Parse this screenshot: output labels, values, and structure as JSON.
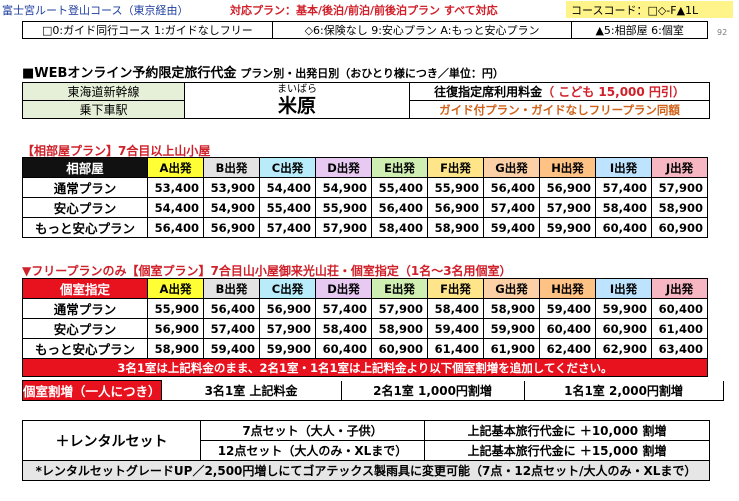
{
  "header": {
    "title": "富士宮ルート登山コース（東京経由）",
    "plans": "対応プラン：基本/後泊/前泊/前後泊プラン すべて対応",
    "course_code": "コースコード：□◇-F▲1L",
    "page_num": "92"
  },
  "legend": {
    "guide": "□0:ガイド同行コース 1:ガイドなしフリー",
    "insurance": "◇6:保険なし 9:安心プラン A:もっと安心プラン",
    "room": "▲5:相部屋 6:個室"
  },
  "section": {
    "title": "■WEBオンライン予約限定旅行代金",
    "subtitle": " プラン別・出発日別（おひとり様につき／単位：円）"
  },
  "station": {
    "line": "東海道新幹線",
    "board": "乗下車駅",
    "reading": "まいばら",
    "name": "米原",
    "fare_label": "往復指定席利用料金",
    "child_fare": "（ こども 15,000 円引）",
    "guide_note": "ガイド付プラン・ガイドなしフリープラン同額"
  },
  "shared_table": {
    "heading": "【相部屋プラン】7合目以上山小屋",
    "room_label": "相部屋",
    "departures": [
      {
        "label": "A出発",
        "color": "#ffff33"
      },
      {
        "label": "B出発",
        "color": "#e3e3e3"
      },
      {
        "label": "C出発",
        "color": "#b8ecfb"
      },
      {
        "label": "D出発",
        "color": "#e7c9f2"
      },
      {
        "label": "E出発",
        "color": "#cfeeb1"
      },
      {
        "label": "F出発",
        "color": "#ffe58a"
      },
      {
        "label": "G出発",
        "color": "#fbd0a6"
      },
      {
        "label": "H出発",
        "color": "#ffc285"
      },
      {
        "label": "I出発",
        "color": "#bde3ff"
      },
      {
        "label": "J出発",
        "color": "#f6b7c2"
      }
    ],
    "rows": [
      {
        "label": "通常プラン",
        "values": [
          "53,400",
          "53,900",
          "54,400",
          "54,900",
          "55,400",
          "55,900",
          "56,400",
          "56,900",
          "57,400",
          "57,900"
        ]
      },
      {
        "label": "安心プラン",
        "values": [
          "54,400",
          "54,900",
          "55,400",
          "55,900",
          "56,400",
          "56,900",
          "57,400",
          "57,900",
          "58,400",
          "58,900"
        ]
      },
      {
        "label": "もっと安心プラン",
        "values": [
          "56,400",
          "56,900",
          "57,400",
          "57,900",
          "58,400",
          "58,900",
          "59,400",
          "59,900",
          "60,400",
          "60,900"
        ]
      }
    ]
  },
  "private_table": {
    "heading": "▼フリープランのみ【個室プラン】7合目山小屋御来光山荘・個室指定（1名～3名用個室）",
    "room_label": "個室指定",
    "rows": [
      {
        "label": "通常プラン",
        "values": [
          "55,900",
          "56,400",
          "56,900",
          "57,400",
          "57,900",
          "58,400",
          "58,900",
          "59,400",
          "59,900",
          "60,400"
        ]
      },
      {
        "label": "安心プラン",
        "values": [
          "56,900",
          "57,400",
          "57,900",
          "58,400",
          "58,900",
          "59,400",
          "59,900",
          "60,400",
          "60,900",
          "61,400"
        ]
      },
      {
        "label": "もっと安心プラン",
        "values": [
          "58,900",
          "59,400",
          "59,900",
          "60,400",
          "60,900",
          "61,400",
          "61,900",
          "62,400",
          "62,900",
          "63,400"
        ]
      }
    ],
    "note": "3名1室は上記料金のまま、2名1室・1名1室は上記料金より以下個室割増を追加してください。"
  },
  "surcharge": {
    "label": "個室割増（一人につき）",
    "three": "3名1室 上記料金",
    "two": "2名1室 1,000円割増",
    "one": "1名1室 2,000円割増"
  },
  "rental": {
    "label": "＋レンタルセット",
    "set7": "7点セット（大人・子供）",
    "set12": "12点セット（大人のみ・XLまで）",
    "set7_price": "上記基本旅行代金に ＋10,000 割増",
    "set12_price": "上記基本旅行代金に ＋15,000 割増",
    "footnote": "*レンタルセットグレードUP／2,500円増しにてゴアテックス製雨具に変更可能（7点・12点セット/大人のみ・XLまで）"
  }
}
